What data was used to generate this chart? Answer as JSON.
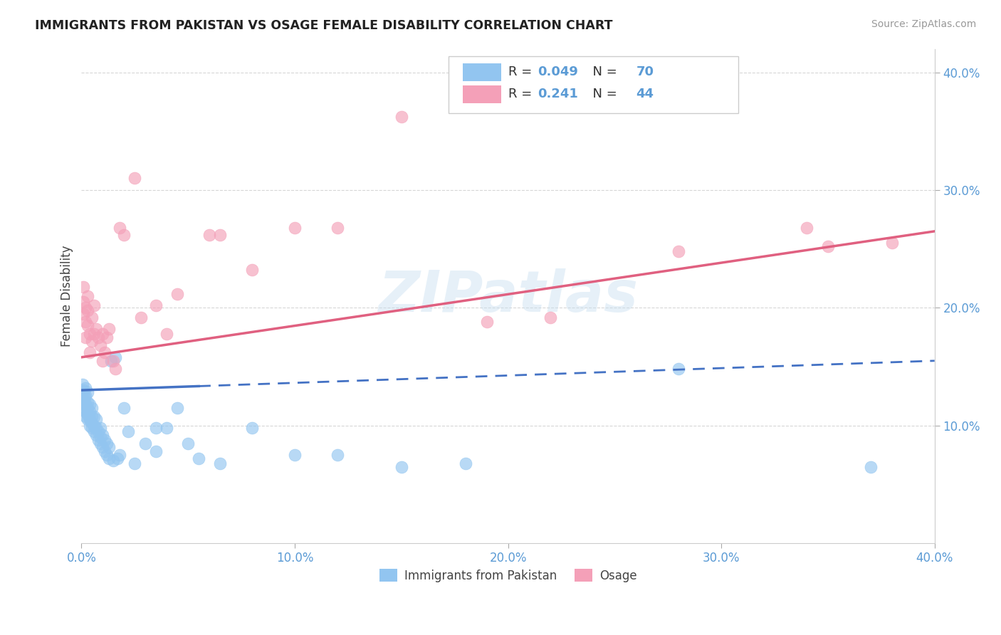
{
  "title": "IMMIGRANTS FROM PAKISTAN VS OSAGE FEMALE DISABILITY CORRELATION CHART",
  "source": "Source: ZipAtlas.com",
  "ylabel": "Female Disability",
  "xlim": [
    0.0,
    0.4
  ],
  "ylim": [
    0.0,
    0.42
  ],
  "x_ticks": [
    0.0,
    0.1,
    0.2,
    0.3,
    0.4
  ],
  "x_tick_labels": [
    "0.0%",
    "10.0%",
    "20.0%",
    "30.0%",
    "40.0%"
  ],
  "y_ticks_right": [
    0.1,
    0.2,
    0.3,
    0.4
  ],
  "y_tick_labels_right": [
    "10.0%",
    "20.0%",
    "30.0%",
    "40.0%"
  ],
  "watermark": "ZIPatlas",
  "legend_R1": "0.049",
  "legend_N1": "70",
  "legend_R2": "0.241",
  "legend_N2": "44",
  "color_blue": "#92C5F0",
  "color_pink": "#F4A0B8",
  "line_blue": "#4472C4",
  "line_pink": "#E06080",
  "background": "#ffffff",
  "blue_scatter_x": [
    0.0005,
    0.0008,
    0.001,
    0.001,
    0.001,
    0.0012,
    0.0015,
    0.0015,
    0.002,
    0.002,
    0.002,
    0.002,
    0.002,
    0.0025,
    0.003,
    0.003,
    0.003,
    0.003,
    0.003,
    0.0035,
    0.004,
    0.004,
    0.004,
    0.004,
    0.005,
    0.005,
    0.005,
    0.005,
    0.006,
    0.006,
    0.006,
    0.007,
    0.007,
    0.007,
    0.008,
    0.008,
    0.009,
    0.009,
    0.009,
    0.01,
    0.01,
    0.011,
    0.011,
    0.012,
    0.012,
    0.013,
    0.013,
    0.014,
    0.015,
    0.016,
    0.017,
    0.018,
    0.02,
    0.022,
    0.025,
    0.03,
    0.035,
    0.035,
    0.04,
    0.045,
    0.05,
    0.055,
    0.065,
    0.08,
    0.1,
    0.12,
    0.15,
    0.18,
    0.28,
    0.37
  ],
  "blue_scatter_y": [
    0.135,
    0.128,
    0.122,
    0.118,
    0.13,
    0.125,
    0.115,
    0.12,
    0.108,
    0.112,
    0.118,
    0.125,
    0.132,
    0.11,
    0.105,
    0.11,
    0.115,
    0.12,
    0.128,
    0.108,
    0.1,
    0.105,
    0.112,
    0.118,
    0.098,
    0.102,
    0.108,
    0.115,
    0.095,
    0.1,
    0.108,
    0.092,
    0.098,
    0.105,
    0.088,
    0.095,
    0.085,
    0.09,
    0.098,
    0.082,
    0.092,
    0.078,
    0.088,
    0.075,
    0.085,
    0.072,
    0.082,
    0.155,
    0.07,
    0.158,
    0.072,
    0.075,
    0.115,
    0.095,
    0.068,
    0.085,
    0.098,
    0.078,
    0.098,
    0.115,
    0.085,
    0.072,
    0.068,
    0.098,
    0.075,
    0.075,
    0.065,
    0.068,
    0.148,
    0.065
  ],
  "pink_scatter_x": [
    0.001,
    0.001,
    0.001,
    0.002,
    0.002,
    0.002,
    0.003,
    0.003,
    0.003,
    0.004,
    0.004,
    0.005,
    0.005,
    0.006,
    0.006,
    0.007,
    0.008,
    0.009,
    0.01,
    0.01,
    0.011,
    0.012,
    0.013,
    0.015,
    0.016,
    0.018,
    0.02,
    0.025,
    0.028,
    0.035,
    0.04,
    0.045,
    0.06,
    0.065,
    0.08,
    0.1,
    0.12,
    0.15,
    0.19,
    0.22,
    0.28,
    0.34,
    0.35,
    0.38
  ],
  "pink_scatter_y": [
    0.195,
    0.205,
    0.218,
    0.175,
    0.188,
    0.2,
    0.185,
    0.198,
    0.21,
    0.162,
    0.178,
    0.172,
    0.192,
    0.178,
    0.202,
    0.182,
    0.175,
    0.168,
    0.178,
    0.155,
    0.162,
    0.175,
    0.182,
    0.155,
    0.148,
    0.268,
    0.262,
    0.31,
    0.192,
    0.202,
    0.178,
    0.212,
    0.262,
    0.262,
    0.232,
    0.268,
    0.268,
    0.362,
    0.188,
    0.192,
    0.248,
    0.268,
    0.252,
    0.255
  ],
  "blue_line_solid_end": 0.055,
  "blue_line_start_y": 0.13,
  "blue_line_end_y": 0.155,
  "pink_line_start_x": 0.0,
  "pink_line_start_y": 0.158,
  "pink_line_end_x": 0.4,
  "pink_line_end_y": 0.265
}
